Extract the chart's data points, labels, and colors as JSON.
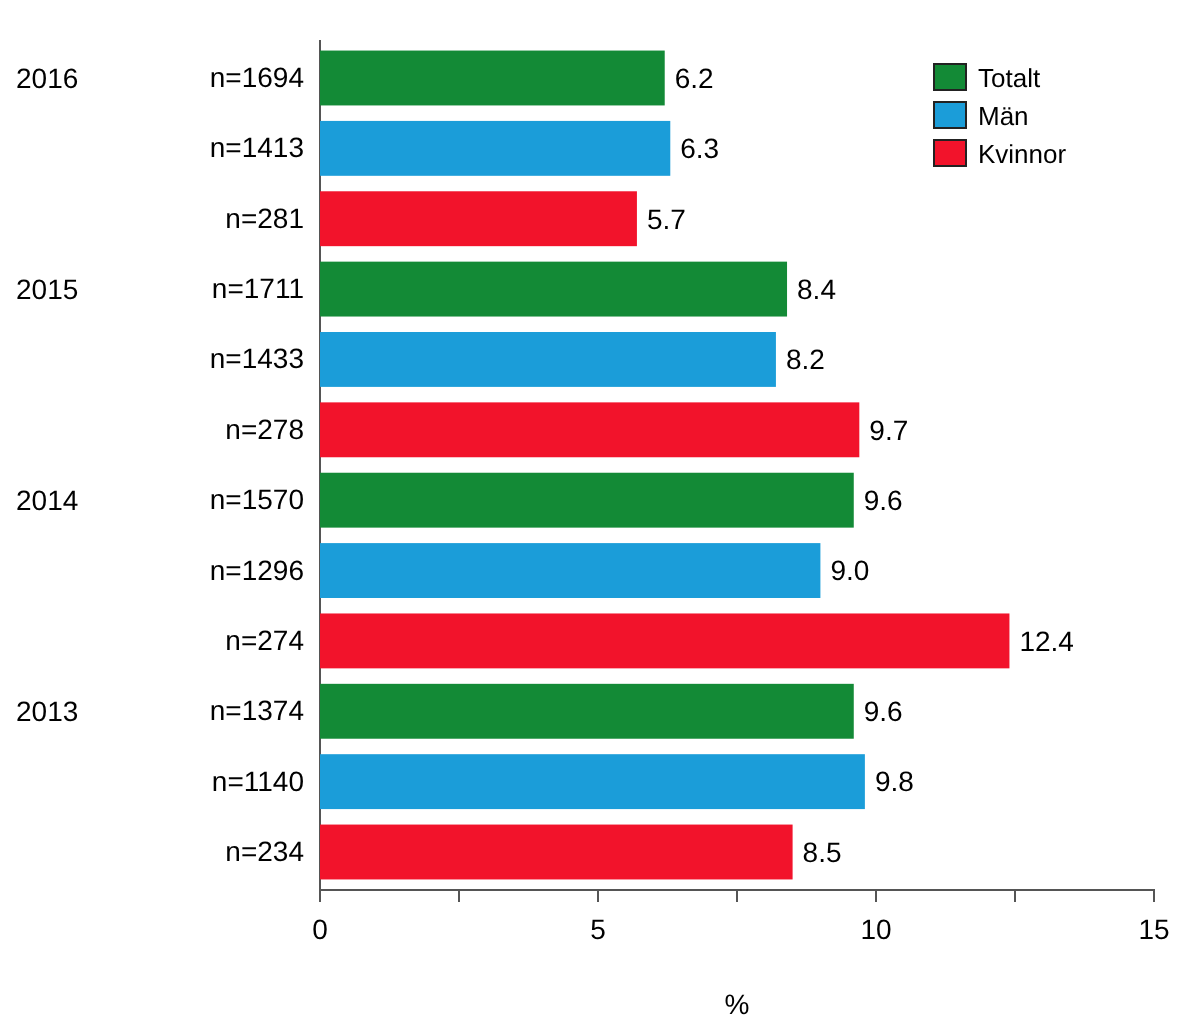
{
  "chart_data": {
    "type": "bar",
    "orientation": "horizontal",
    "xlabel": "%",
    "categories": [
      "n=1694",
      "n=1413",
      "n=281",
      "n=1711",
      "n=1433",
      "n=278",
      "n=1570",
      "n=1296",
      "n=274",
      "n=1374",
      "n=1140",
      "n=234"
    ],
    "series": [
      {
        "name": "Totalt",
        "color": "#138a36",
        "values": [
          6.2,
          null,
          null,
          8.4,
          null,
          null,
          9.6,
          null,
          null,
          9.6,
          null,
          null
        ],
        "value_labels": [
          "6.2",
          null,
          null,
          "8.4",
          null,
          null,
          "9.6",
          null,
          null,
          "9.6",
          null,
          null
        ]
      },
      {
        "name": "Män",
        "color": "#1b9dd9",
        "values": [
          null,
          6.3,
          null,
          null,
          8.2,
          null,
          null,
          9.0,
          null,
          null,
          9.8,
          null
        ],
        "value_labels": [
          null,
          "6.3",
          null,
          null,
          "8.2",
          null,
          null,
          "9.0",
          null,
          null,
          "9.8",
          null
        ]
      },
      {
        "name": "Kvinnor",
        "color": "#f2132b",
        "values": [
          null,
          null,
          5.7,
          null,
          null,
          9.7,
          null,
          null,
          12.4,
          null,
          null,
          8.5
        ],
        "value_labels": [
          null,
          null,
          "5.7",
          null,
          null,
          "9.7",
          null,
          null,
          "12.4",
          null,
          null,
          "8.5"
        ]
      }
    ],
    "xlim": [
      0,
      15
    ],
    "xticks": [
      0,
      {
        "value": 2.5,
        "label": null
      },
      5,
      {
        "value": 7.5,
        "label": null
      },
      10,
      {
        "value": 12.5,
        "label": null
      },
      15
    ],
    "annotations": [
      "2016",
      "2015",
      "2014",
      "2013"
    ],
    "legend": "top right",
    "grid": false
  }
}
